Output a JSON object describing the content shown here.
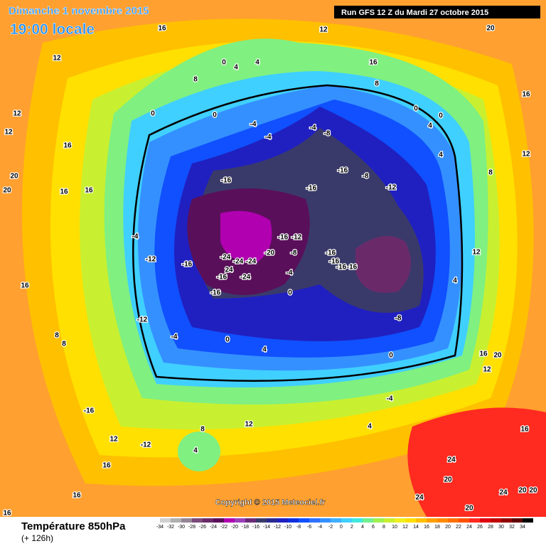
{
  "header": {
    "title": "Dimanche 1 novembre 2015",
    "time": "19:00 locale",
    "run": "Run GFS 12 Z du Mardi 27 octobre 2015"
  },
  "footer": {
    "copyright": "Copyright © 2015 Meteociel.fr"
  },
  "legend": {
    "title": "Température 850hPa",
    "lead": "(+ 126h)",
    "scale": {
      "labels": [
        -34,
        -32,
        -30,
        -28,
        -26,
        -24,
        -22,
        -20,
        -18,
        -16,
        -14,
        -12,
        -10,
        -8,
        -6,
        -4,
        -2,
        0,
        2,
        4,
        6,
        8,
        10,
        12,
        14,
        16,
        18,
        20,
        22,
        24,
        26,
        28,
        30,
        32,
        34
      ],
      "colors": [
        "#d0d0d0",
        "#b0b0b0",
        "#958595",
        "#7a4a7a",
        "#6a2a6a",
        "#5a0f5a",
        "#b000b0",
        "#9a40b8",
        "#6a2a78",
        "#3a3a6a",
        "#2a2a90",
        "#2020c0",
        "#1030e0",
        "#1050ff",
        "#3070ff",
        "#3590ff",
        "#40b0ff",
        "#40d0ff",
        "#40e8e0",
        "#70f090",
        "#a0f050",
        "#c8f030",
        "#f0f020",
        "#ffe000",
        "#ffc000",
        "#ffa000",
        "#ff8a00",
        "#ff7000",
        "#ff5000",
        "#ff2a20",
        "#e00010",
        "#c00000",
        "#900000",
        "#600000",
        "#000000"
      ]
    }
  },
  "map": {
    "labels": [
      16,
      12,
      20,
      12,
      0,
      4,
      4,
      16,
      8,
      8,
      16,
      0,
      0,
      -4,
      -4,
      -4,
      -8,
      0,
      0,
      4,
      12,
      12,
      16,
      20,
      20,
      -16,
      -16,
      -16,
      -8,
      -12,
      4,
      8,
      12,
      16,
      16,
      -4,
      -12,
      -24,
      -24,
      -24,
      24,
      -24,
      -16,
      -16,
      -20,
      -16,
      -12,
      -8,
      -16,
      -16,
      -16,
      -16,
      -4,
      0,
      -16,
      -12,
      -4,
      0,
      4,
      -8,
      4,
      12,
      16,
      8,
      8,
      -16,
      -12,
      8,
      4,
      12,
      12,
      16,
      16,
      16,
      24,
      20,
      24,
      20,
      24,
      20,
      20,
      12,
      20,
      16,
      -4,
      4,
      16,
      0
    ]
  }
}
